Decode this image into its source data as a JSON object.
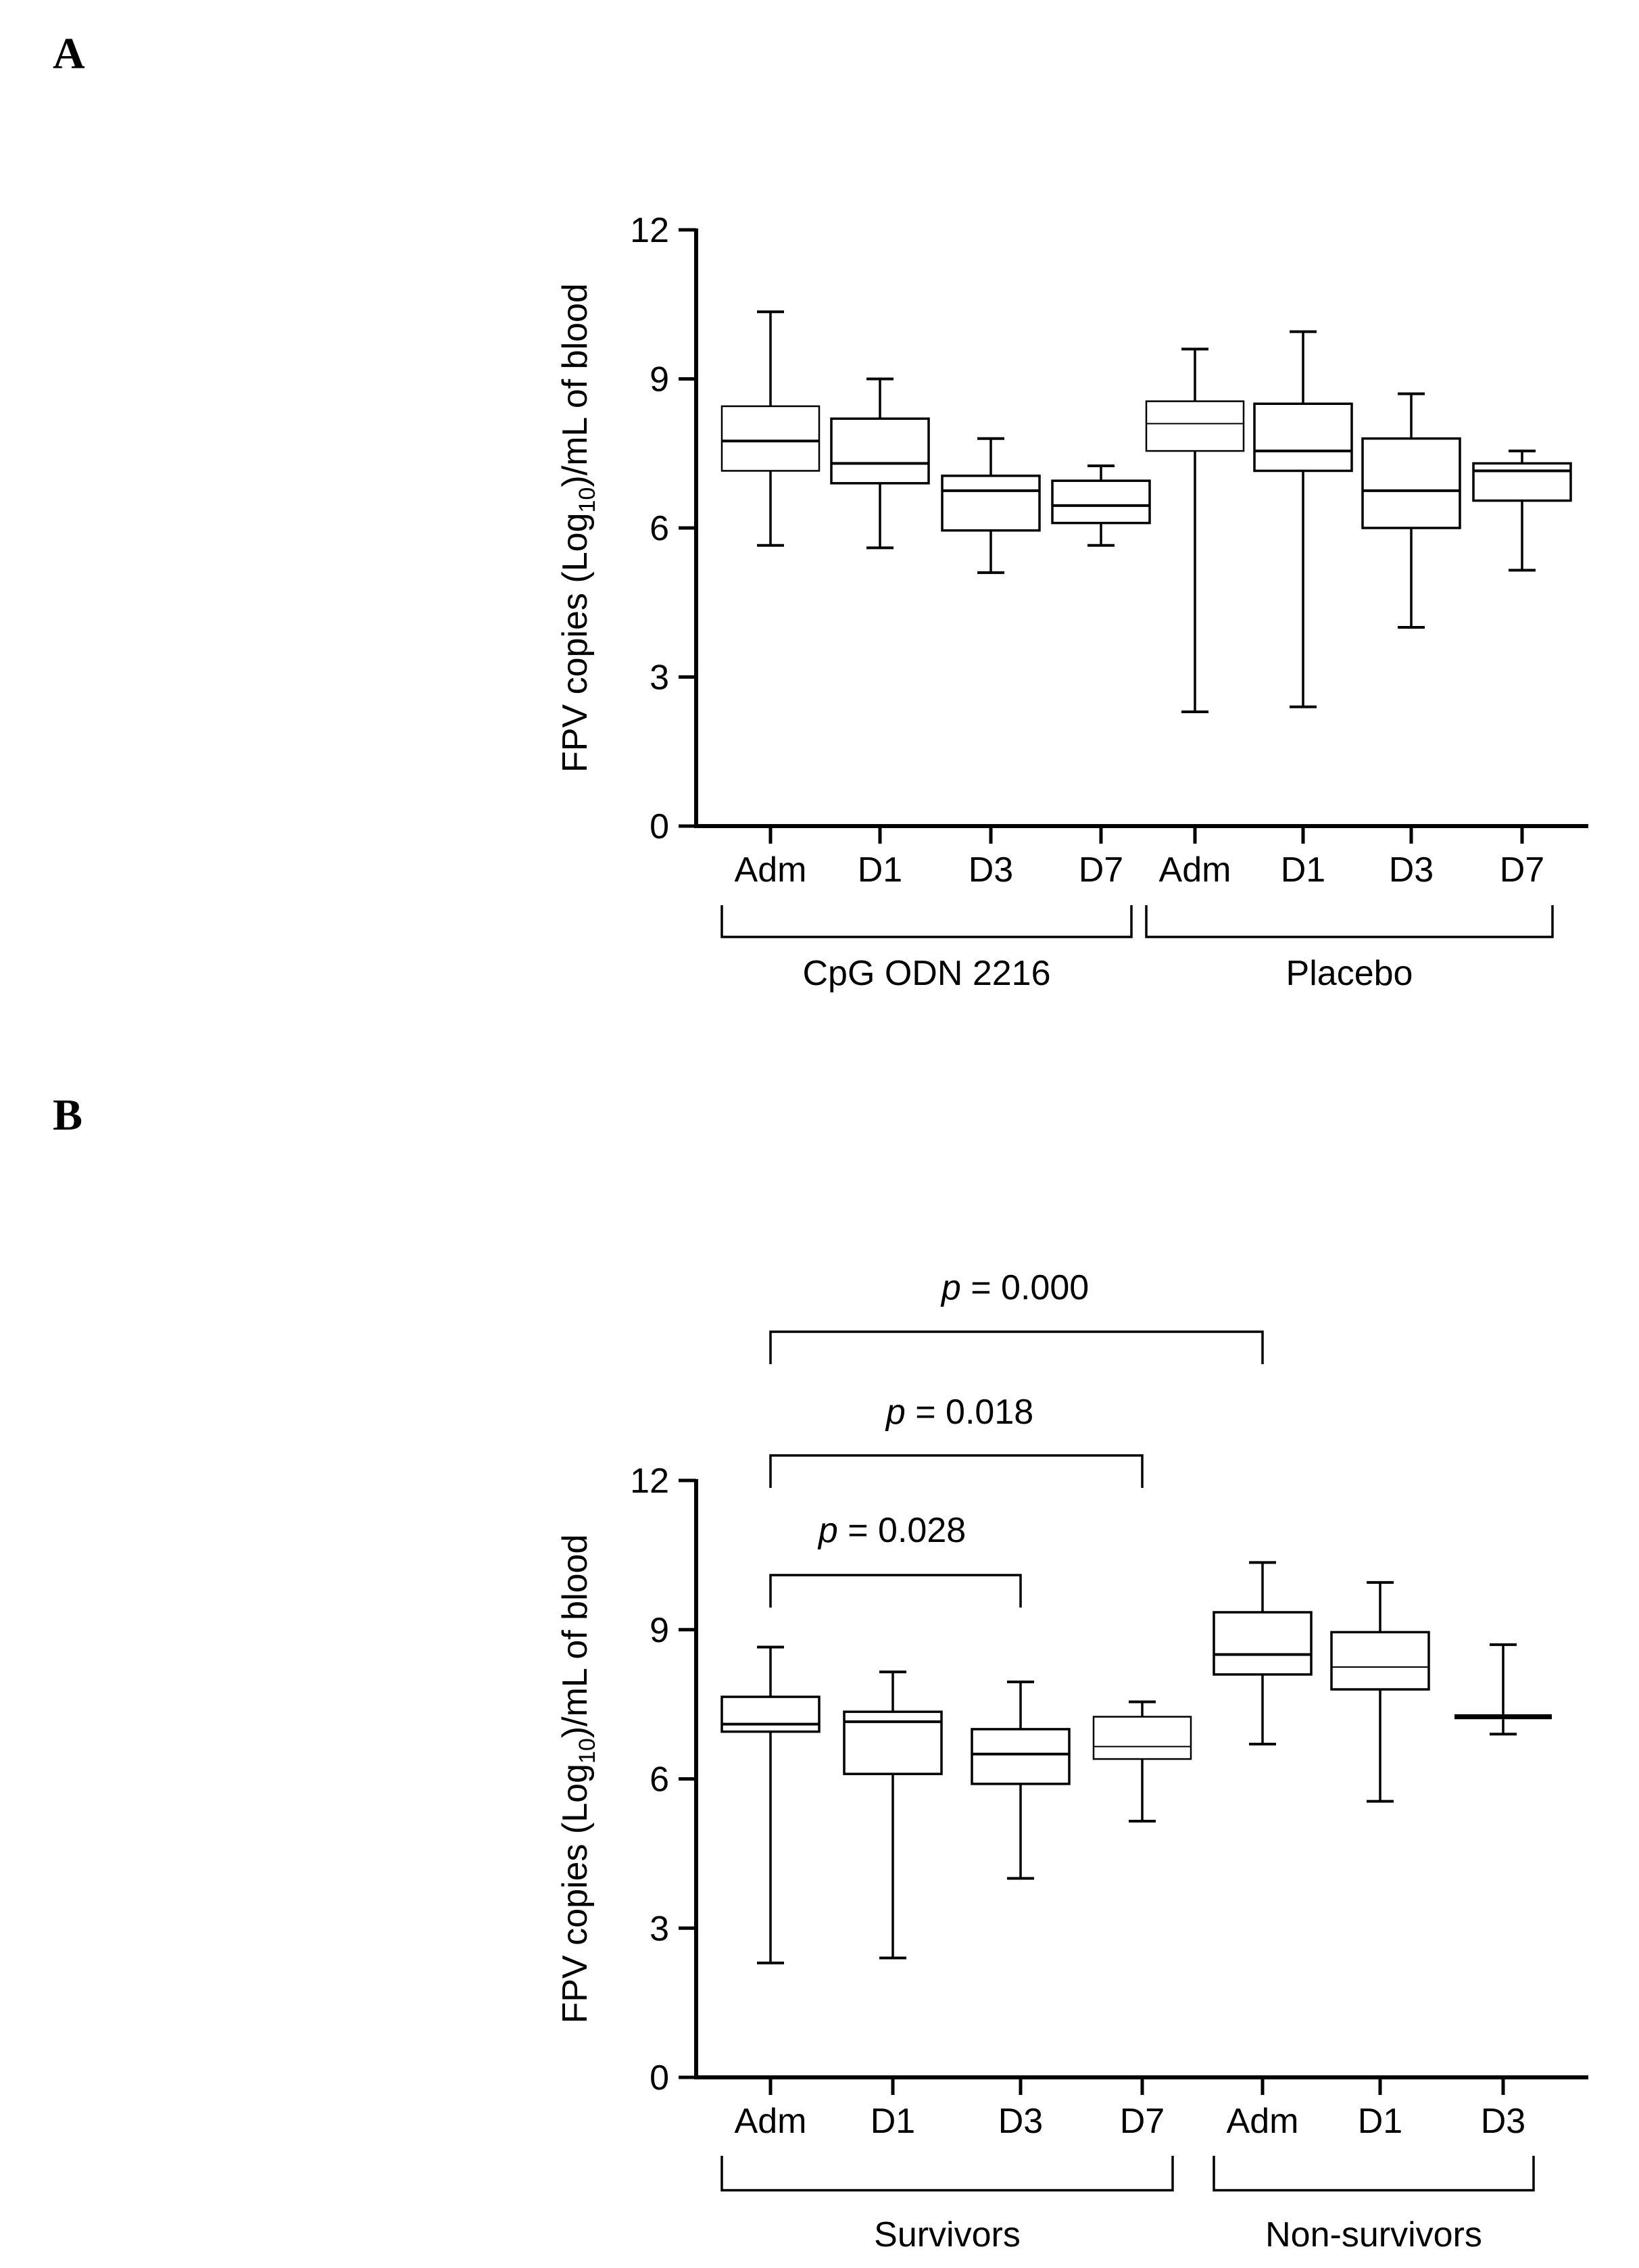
{
  "panels": [
    {
      "letter": "A",
      "chart_data": {
        "type": "boxplot",
        "ylabel_prefix": "FPV copies (Log",
        "ylabel_sub": "10",
        "ylabel_suffix": ")/mL of blood",
        "ylim": [
          0,
          12
        ],
        "yticks": [
          0,
          3,
          6,
          9,
          12
        ],
        "groups": [
          {
            "name": "CpG ODN 2216",
            "boxes": [
              {
                "label": "Adm",
                "min": 5.65,
                "q1": 7.15,
                "median": 7.75,
                "q3": 8.45,
                "max": 10.35
              },
              {
                "label": "D1",
                "min": 5.6,
                "q1": 6.9,
                "median": 7.3,
                "q3": 8.2,
                "max": 9.0
              },
              {
                "label": "D3",
                "min": 5.1,
                "q1": 5.95,
                "median": 6.75,
                "q3": 7.05,
                "max": 7.8
              },
              {
                "label": "D7",
                "min": 5.65,
                "q1": 6.1,
                "median": 6.45,
                "q3": 6.95,
                "max": 7.25
              }
            ]
          },
          {
            "name": "Placebo",
            "boxes": [
              {
                "label": "Adm",
                "min": 2.3,
                "q1": 7.55,
                "median": 8.1,
                "q3": 8.55,
                "max": 9.6
              },
              {
                "label": "D1",
                "min": 2.4,
                "q1": 7.15,
                "median": 7.55,
                "q3": 8.5,
                "max": 9.95
              },
              {
                "label": "D3",
                "min": 4.0,
                "q1": 6.0,
                "median": 6.75,
                "q3": 7.8,
                "max": 8.7
              },
              {
                "label": "D7",
                "min": 5.15,
                "q1": 6.55,
                "median": 7.15,
                "q3": 7.3,
                "max": 7.55
              }
            ]
          }
        ],
        "annotations": []
      }
    },
    {
      "letter": "B",
      "chart_data": {
        "type": "boxplot",
        "ylabel_prefix": "FPV copies (Log",
        "ylabel_sub": "10",
        "ylabel_suffix": ")/mL of blood",
        "ylim": [
          0,
          12
        ],
        "yticks": [
          0,
          3,
          6,
          9,
          12
        ],
        "groups": [
          {
            "name": "Survivors",
            "boxes": [
              {
                "label": "Adm",
                "min": 2.3,
                "q1": 6.95,
                "median": 7.1,
                "q3": 7.65,
                "max": 8.65
              },
              {
                "label": "D1",
                "min": 2.4,
                "q1": 6.1,
                "median": 7.15,
                "q3": 7.35,
                "max": 8.15
              },
              {
                "label": "D3",
                "min": 4.0,
                "q1": 5.9,
                "median": 6.5,
                "q3": 7.0,
                "max": 7.95
              },
              {
                "label": "D7",
                "min": 5.15,
                "q1": 6.4,
                "median": 6.65,
                "q3": 7.25,
                "max": 7.55
              }
            ]
          },
          {
            "name": "Non-survivors",
            "boxes": [
              {
                "label": "Adm",
                "min": 6.7,
                "q1": 8.1,
                "median": 8.5,
                "q3": 9.35,
                "max": 10.35
              },
              {
                "label": "D1",
                "min": 5.55,
                "q1": 7.8,
                "median": 8.25,
                "q3": 8.95,
                "max": 9.95
              },
              {
                "label": "D3",
                "min": 6.9,
                "q1": 7.2,
                "median": 7.25,
                "q3": 7.3,
                "max": 8.7
              }
            ]
          }
        ],
        "annotations": [
          {
            "p_symbol": "p",
            "text": " = 0.000",
            "from": "Survivors Adm",
            "to": "Non-survivors Adm"
          },
          {
            "p_symbol": "p",
            "text": " = 0.018",
            "from": "Survivors Adm",
            "to": "Survivors D7"
          },
          {
            "p_symbol": "p",
            "text": " = 0.028",
            "from": "Survivors Adm",
            "to": "Survivors D3"
          }
        ]
      }
    }
  ]
}
